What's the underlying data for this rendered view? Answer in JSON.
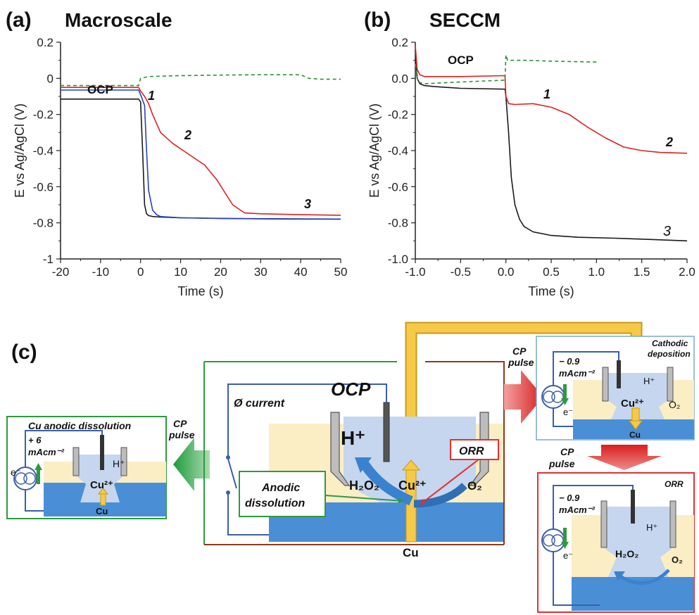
{
  "panel_a": {
    "letter": "(a)",
    "title": "Macroscale"
  },
  "panel_b": {
    "letter": "(b)",
    "title": "SECCM"
  },
  "panel_c": {
    "letter": "(c)"
  },
  "chart_data": [
    {
      "type": "line",
      "title": "Macroscale",
      "xlabel": "Time (s)",
      "ylabel": "E vs Ag/AgCl (V)",
      "xlim": [
        -20,
        50
      ],
      "ylim": [
        -1,
        0.2
      ],
      "xticks": [
        -20,
        -10,
        0,
        10,
        20,
        30,
        40,
        50
      ],
      "yticks": [
        0.2,
        0,
        -0.2,
        -0.4,
        -0.6,
        -0.8,
        -1
      ],
      "xtick_labels": [
        "-20",
        "-10",
        "0",
        "10",
        "20",
        "30",
        "40",
        "50"
      ],
      "ytick_labels": [
        "0.2",
        "0",
        "-0.2",
        "-0.4",
        "-0.6",
        "-0.8",
        "-1"
      ],
      "annotations": [
        "OCP",
        "1",
        "2",
        "3"
      ],
      "series": [
        {
          "color": "#1a1a1a",
          "dash": "",
          "x": [
            -20,
            -0.5,
            0,
            0.5,
            1,
            1.5,
            2,
            3,
            5,
            10,
            20,
            30,
            40,
            50
          ],
          "y": [
            -0.115,
            -0.115,
            -0.13,
            -0.4,
            -0.7,
            -0.75,
            -0.76,
            -0.765,
            -0.768,
            -0.772,
            -0.776,
            -0.778,
            -0.779,
            -0.78
          ]
        },
        {
          "color": "#2b3fbf",
          "dash": "",
          "x": [
            -20,
            -0.5,
            0,
            1,
            1.5,
            2,
            3,
            4,
            5,
            10,
            20,
            30,
            40,
            50
          ],
          "y": [
            -0.065,
            -0.065,
            -0.09,
            -0.15,
            -0.4,
            -0.62,
            -0.73,
            -0.755,
            -0.765,
            -0.772,
            -0.775,
            -0.777,
            -0.778,
            -0.779
          ]
        },
        {
          "color": "#e02020",
          "dash": "",
          "x": [
            -20,
            -0.5,
            0,
            1,
            2,
            3,
            5,
            8,
            12,
            16,
            19,
            21,
            23,
            26,
            30,
            40,
            50
          ],
          "y": [
            -0.05,
            -0.05,
            -0.07,
            -0.1,
            -0.14,
            -0.2,
            -0.3,
            -0.36,
            -0.42,
            -0.48,
            -0.56,
            -0.63,
            -0.7,
            -0.745,
            -0.75,
            -0.755,
            -0.758
          ]
        },
        {
          "color": "#2f8f3a",
          "dash": "5,4",
          "x": [
            -20,
            -0.5,
            0,
            2,
            10,
            20,
            30,
            40,
            42,
            45,
            50
          ],
          "y": [
            -0.04,
            -0.04,
            0.0,
            0.01,
            0.015,
            0.018,
            0.02,
            0.02,
            0.0,
            -0.005,
            -0.005
          ]
        }
      ]
    },
    {
      "type": "line",
      "title": "SECCM",
      "xlabel": "Time (s)",
      "ylabel": "E vs Ag/AgCl (V)",
      "xlim": [
        -1.0,
        2.0
      ],
      "ylim": [
        -1.0,
        0.2
      ],
      "xticks": [
        -1.0,
        -0.5,
        0.0,
        0.5,
        1.0,
        1.5,
        2.0
      ],
      "yticks": [
        0.2,
        0.0,
        -0.2,
        -0.4,
        -0.6,
        -0.8,
        -1.0
      ],
      "xtick_labels": [
        "-1.0",
        "-0.5",
        "0.0",
        "0.5",
        "1.0",
        "1.5",
        "2.0"
      ],
      "ytick_labels": [
        "0.2",
        "0.0",
        "-0.2",
        "-0.4",
        "-0.6",
        "-0.8",
        "-1.0"
      ],
      "annotations": [
        "OCP",
        "1",
        "2",
        "3"
      ],
      "series": [
        {
          "color": "#1a1a1a",
          "dash": "",
          "x": [
            -1.0,
            -0.98,
            -0.95,
            -0.9,
            -0.8,
            -0.5,
            -0.01,
            0.0,
            0.03,
            0.06,
            0.1,
            0.15,
            0.2,
            0.3,
            0.5,
            0.8,
            1.2,
            1.6,
            2.0
          ],
          "y": [
            0.16,
            0.0,
            -0.03,
            -0.04,
            -0.045,
            -0.055,
            -0.06,
            -0.1,
            -0.3,
            -0.55,
            -0.7,
            -0.78,
            -0.82,
            -0.85,
            -0.87,
            -0.88,
            -0.885,
            -0.892,
            -0.9
          ]
        },
        {
          "color": "#e02020",
          "dash": "",
          "x": [
            -1.0,
            -0.98,
            -0.95,
            -0.9,
            -0.5,
            -0.01,
            0.0,
            0.03,
            0.1,
            0.3,
            0.5,
            0.7,
            0.9,
            1.1,
            1.3,
            1.5,
            1.7,
            2.0
          ],
          "y": [
            0.18,
            0.05,
            0.02,
            0.01,
            0.01,
            0.015,
            -0.1,
            -0.14,
            -0.145,
            -0.14,
            -0.16,
            -0.2,
            -0.27,
            -0.33,
            -0.38,
            -0.4,
            -0.41,
            -0.415
          ]
        },
        {
          "color": "#2f8f3a",
          "dash": "5,4",
          "x": [
            -1.0,
            -0.97,
            -0.9,
            -0.5,
            -0.01,
            0.0,
            0.02,
            0.2,
            0.5,
            1.0
          ],
          "y": [
            0.08,
            -0.02,
            -0.03,
            -0.02,
            -0.01,
            0.13,
            0.1,
            0.1,
            0.095,
            0.09
          ]
        }
      ]
    }
  ],
  "diagram": {
    "left_box": {
      "title": "Cu anodic dissolution",
      "current_1": "+ 6",
      "current_2": "mAcm⁻²",
      "electron": "e⁻",
      "hplus": "H⁺",
      "cu2": "Cu²⁺",
      "cu": "Cu",
      "box_color": "#2e9a3e"
    },
    "arrow_left_label_1": "CP",
    "arrow_left_label_2": "pulse",
    "center_box": {
      "title": "OCP",
      "current_label": "Ø current",
      "hplus": "H⁺",
      "h2o2": "H₂O₂",
      "cu2": "Cu²⁺",
      "o2": "O₂",
      "cu": "Cu",
      "orr_label": "ORR",
      "anodic_label_1": "Anodic",
      "anodic_label_2": "dissolution"
    },
    "arrow_right_label_1": "CP",
    "arrow_right_label_2": "pulse",
    "top_right_box": {
      "title_1": "Cathodic",
      "title_2": "deposition",
      "current_1": "− 0.9",
      "current_2": "mAcm⁻²",
      "electron": "e⁻",
      "hplus": "H⁺",
      "cu2": "Cu²⁺",
      "o2": "O₂",
      "cu": "Cu"
    },
    "arrow_down_label_1": "CP",
    "arrow_down_label_2": "pulse",
    "bottom_right_box": {
      "title": "ORR",
      "current_1": "− 0.9",
      "current_2": "mAcm⁻²",
      "electron": "e⁻",
      "hplus": "H⁺",
      "h2o2": "H₂O₂",
      "o2": "O₂"
    },
    "colors": {
      "electrolyte": "#c5d6ee",
      "substrate": "#4a8fd6",
      "background_sand": "#fbedc4",
      "cu_arrow": "#f7c948",
      "red": "#e23030",
      "green": "#2e9a3e",
      "blue_wire": "#3b5ea8"
    }
  }
}
